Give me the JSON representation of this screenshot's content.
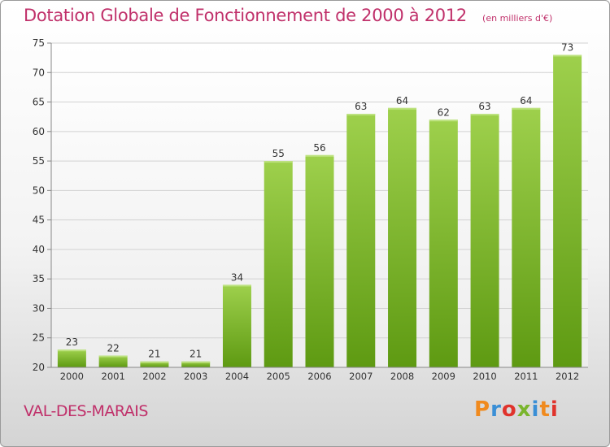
{
  "header": {
    "title": "Dotation Globale de Fonctionnement de 2000 à 2012",
    "subtitle": "(en milliers d'€)"
  },
  "footer": {
    "commune": "VAL-DES-MARAIS",
    "logo_text": "Proxiti"
  },
  "colors": {
    "bar_light": "#9ed04c",
    "bar_dark": "#5e9a12",
    "title": "#c0306a",
    "logo": [
      "#f08a1e",
      "#3a8fd6",
      "#e0332c",
      "#7ab52d",
      "#3a8fd6",
      "#f08a1e",
      "#e0332c"
    ]
  },
  "chart_data": {
    "type": "bar",
    "categories": [
      "2000",
      "2001",
      "2002",
      "2003",
      "2004",
      "2005",
      "2006",
      "2007",
      "2008",
      "2009",
      "2010",
      "2011",
      "2012"
    ],
    "values": [
      23,
      22,
      21,
      21,
      34,
      55,
      56,
      63,
      64,
      62,
      63,
      64,
      73
    ],
    "data_labels": [
      "23",
      "22",
      "21",
      "21",
      "34",
      "55",
      "56",
      "63",
      "64",
      "62",
      "63",
      "64",
      "73"
    ],
    "ylim": [
      20,
      75
    ],
    "yticks": [
      "20",
      "25",
      "30",
      "35",
      "40",
      "45",
      "50",
      "55",
      "60",
      "65",
      "70",
      "75"
    ],
    "grid": true,
    "xlabel": "",
    "ylabel": ""
  }
}
